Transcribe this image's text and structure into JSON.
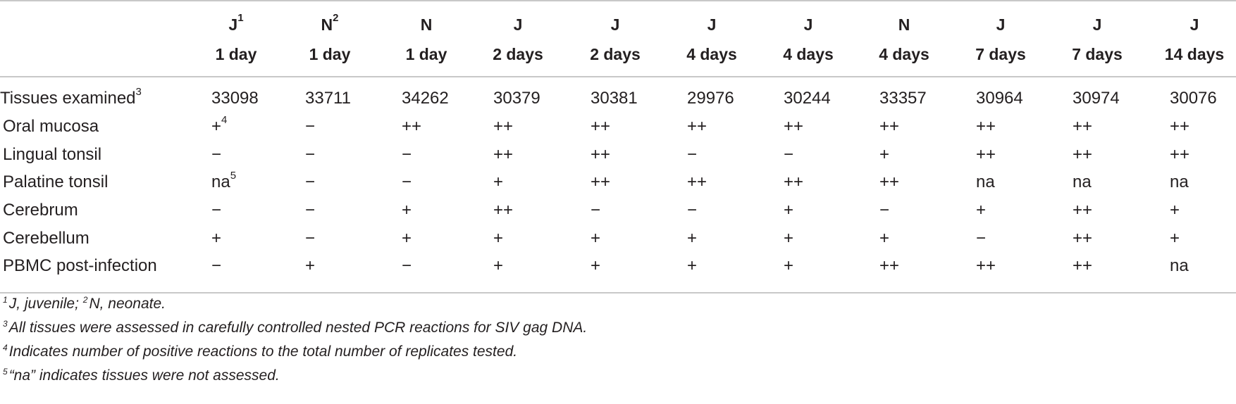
{
  "table": {
    "columns": [
      {
        "group": "J",
        "group_sup": "1",
        "time": "1 day"
      },
      {
        "group": "N",
        "group_sup": "2",
        "time": "1 day"
      },
      {
        "group": "N",
        "group_sup": "",
        "time": "1 day"
      },
      {
        "group": "J",
        "group_sup": "",
        "time": "2 days"
      },
      {
        "group": "J",
        "group_sup": "",
        "time": "2 days"
      },
      {
        "group": "J",
        "group_sup": "",
        "time": "4 days"
      },
      {
        "group": "J",
        "group_sup": "",
        "time": "4 days"
      },
      {
        "group": "N",
        "group_sup": "",
        "time": "4 days"
      },
      {
        "group": "J",
        "group_sup": "",
        "time": "7 days"
      },
      {
        "group": "J",
        "group_sup": "",
        "time": "7 days"
      },
      {
        "group": "J",
        "group_sup": "",
        "time": "14 days"
      }
    ],
    "rows": [
      {
        "label": "Tissues examined",
        "label_sup": "3",
        "cells": [
          "33098",
          "33711",
          "34262",
          "30379",
          "30381",
          "29976",
          "30244",
          "33357",
          "30964",
          "30974",
          "30076"
        ],
        "cell_sups": [
          "",
          "",
          "",
          "",
          "",
          "",
          "",
          "",
          "",
          "",
          ""
        ]
      },
      {
        "label": "Oral mucosa",
        "label_sup": "",
        "cells": [
          "+",
          "−",
          "++",
          "++",
          "++",
          "++",
          "++",
          "++",
          "++",
          "++",
          "++"
        ],
        "cell_sups": [
          "4",
          "",
          "",
          "",
          "",
          "",
          "",
          "",
          "",
          "",
          ""
        ]
      },
      {
        "label": "Lingual tonsil",
        "label_sup": "",
        "cells": [
          "−",
          "−",
          "−",
          "++",
          "++",
          "−",
          "−",
          "+",
          "++",
          "++",
          "++"
        ],
        "cell_sups": [
          "",
          "",
          "",
          "",
          "",
          "",
          "",
          "",
          "",
          "",
          ""
        ]
      },
      {
        "label": "Palatine tonsil",
        "label_sup": "",
        "cells": [
          "na",
          "−",
          "−",
          "+",
          "++",
          "++",
          "++",
          "++",
          "na",
          "na",
          "na"
        ],
        "cell_sups": [
          "5",
          "",
          "",
          "",
          "",
          "",
          "",
          "",
          "",
          "",
          ""
        ]
      },
      {
        "label": "Cerebrum",
        "label_sup": "",
        "cells": [
          "−",
          "−",
          "+",
          "++",
          "−",
          "−",
          "+",
          "−",
          "+",
          "++",
          "+"
        ],
        "cell_sups": [
          "",
          "",
          "",
          "",
          "",
          "",
          "",
          "",
          "",
          "",
          ""
        ]
      },
      {
        "label": "Cerebellum",
        "label_sup": "",
        "cells": [
          "+",
          "−",
          "+",
          "+",
          "+",
          "+",
          "+",
          "+",
          "−",
          "++",
          "+"
        ],
        "cell_sups": [
          "",
          "",
          "",
          "",
          "",
          "",
          "",
          "",
          "",
          "",
          ""
        ]
      },
      {
        "label": "PBMC post-infection",
        "label_sup": "",
        "cells": [
          "−",
          "+",
          "−",
          "+",
          "+",
          "+",
          "+",
          "++",
          "++",
          "++",
          "na"
        ],
        "cell_sups": [
          "",
          "",
          "",
          "",
          "",
          "",
          "",
          "",
          "",
          "",
          ""
        ]
      }
    ]
  },
  "footnotes": [
    {
      "sup": "1",
      "text": "J, juvenile; ",
      "sup2": "2",
      "text2": "N, neonate."
    },
    {
      "sup": "3",
      "text": "All tissues were assessed in carefully controlled nested PCR reactions for SIV gag DNA."
    },
    {
      "sup": "4",
      "text": "Indicates number of positive reactions to the total number of replicates tested."
    },
    {
      "sup": "5",
      "text": "“na” indicates tissues were not assessed."
    }
  ]
}
